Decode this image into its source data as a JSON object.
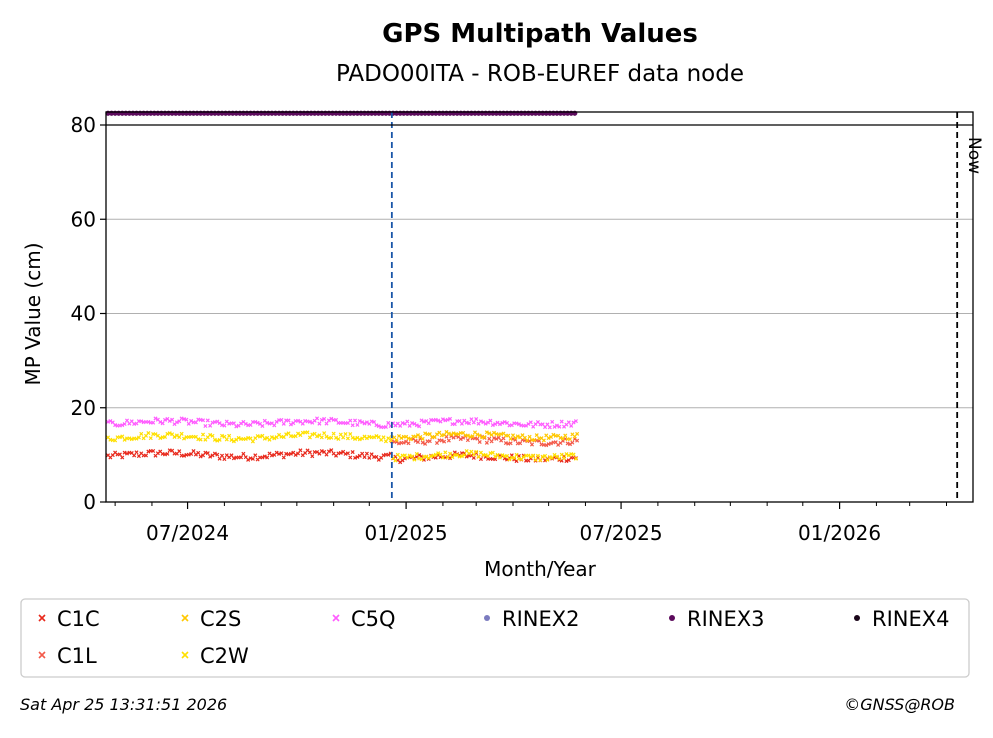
{
  "chart_data": {
    "type": "scatter",
    "title": "GPS Multipath Values",
    "subtitle": "PADO00ITA - ROB-EUREF data node",
    "xlabel": "Month/Year",
    "ylabel": "MP Value (cm)",
    "xlim": [
      "2024-04-25",
      "2026-04-25"
    ],
    "ylim": [
      0,
      80
    ],
    "yticks": [
      0,
      20,
      40,
      60,
      80
    ],
    "xticks": [
      {
        "date": "2024-07-01",
        "label": "07/2024"
      },
      {
        "date": "2025-01-01",
        "label": "01/2025"
      },
      {
        "date": "2025-07-01",
        "label": "07/2025"
      },
      {
        "date": "2026-01-01",
        "label": "01/2026"
      }
    ],
    "grid": "y",
    "series": [
      {
        "name": "C1C",
        "color": "#e8291c",
        "marker": "x",
        "start": "2024-04-25",
        "end": "2025-05-25",
        "segments": [
          {
            "until": "2024-12-20",
            "mean": 10.0
          },
          {
            "until": "2025-05-25",
            "mean": 9.5
          }
        ],
        "spread": 1.4
      },
      {
        "name": "C1L",
        "color": "#f35a4a",
        "marker": "x",
        "start": "2024-12-20",
        "end": "2025-05-25",
        "segments": [
          {
            "until": "2025-05-25",
            "mean": 13.0
          }
        ],
        "spread": 1.4
      },
      {
        "name": "C2S",
        "color": "#ffc800",
        "marker": "x",
        "start": "2024-12-20",
        "end": "2025-05-25",
        "segments": [
          {
            "until": "2025-05-25",
            "mean": 14.0
          }
        ],
        "spread": 1.2
      },
      {
        "name": "C2W",
        "color": "#ffe000",
        "marker": "x",
        "start": "2024-04-25",
        "end": "2025-05-25",
        "segments": [
          {
            "until": "2024-12-20",
            "mean": 13.8
          },
          {
            "until": "2025-05-25",
            "mean": 9.8
          }
        ],
        "spread": 1.3
      },
      {
        "name": "C5Q",
        "color": "#ff5cff",
        "marker": "x",
        "start": "2024-04-25",
        "end": "2025-05-25",
        "segments": [
          {
            "until": "2025-05-25",
            "mean": 16.8
          }
        ],
        "spread": 1.3
      },
      {
        "name": "RINEX2",
        "color": "#7b7bbf",
        "marker": "o",
        "points": []
      },
      {
        "name": "RINEX3",
        "color": "#5c0a5c",
        "marker": "o",
        "start": "2024-04-25",
        "end": "2025-05-25",
        "value": 82.5
      },
      {
        "name": "RINEX4",
        "color": "#1a0519",
        "marker": "o",
        "points": []
      }
    ],
    "vlines": [
      {
        "date": "2024-12-20",
        "color": "#1a56a8",
        "style": "dashed"
      },
      {
        "date": "2026-04-10",
        "color": "#000000",
        "style": "dashed",
        "label": "Now"
      }
    ],
    "legend_position": "bottom",
    "legend_columns": 6
  },
  "footer": {
    "timestamp": "Sat Apr 25 13:31:51 2026",
    "credit": "©GNSS@ROB"
  }
}
